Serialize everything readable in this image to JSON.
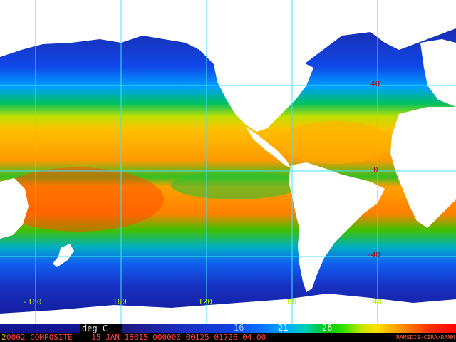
{
  "map": {
    "latitude_labels": [
      "40",
      "0",
      "-40"
    ],
    "longitude_labels": [
      "-160",
      "160",
      "120",
      "80",
      "40"
    ],
    "colors": {
      "land": "#ffffff",
      "gridlines": "#40e0ff",
      "latitude_label_color": "#c00000",
      "longitude_label_color": "#b8f000"
    }
  },
  "colorbar": {
    "units_label": "deg C",
    "tick_labels": [
      "16",
      "21",
      "26"
    ],
    "tick_colors": [
      "#a0c8ff",
      "#ffffff",
      "#ffffff"
    ]
  },
  "footer": {
    "id_digit": "2",
    "caption": "0002 COMPOSITE    15 JAN 18015 000000 00125 01726 04.00",
    "credit": "RAMSDIS-CIRA/RAMM"
  }
}
